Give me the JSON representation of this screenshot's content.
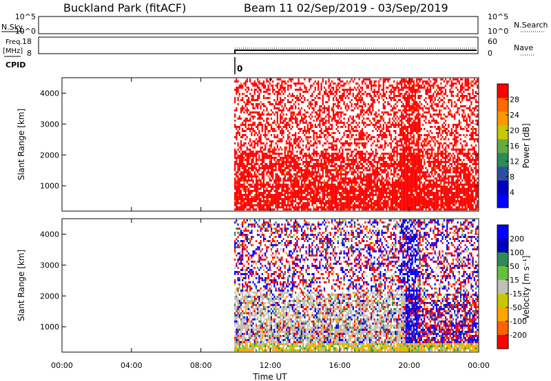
{
  "header": {
    "site": "Buckland Park (fitACF)",
    "beam_info": "Beam 11  02/Sep/2019 - 03/Sep/2019"
  },
  "noise_panel": {
    "left_label": "N.Sky",
    "left_ticks": [
      "10^5",
      "10^0"
    ],
    "right_ticks": [
      "10^5",
      "10^0"
    ],
    "right_label": "N.Search"
  },
  "freq_panel": {
    "left_label_1": "Freq.",
    "left_label_2": "[MHz]",
    "left_ticks": [
      "18",
      "8"
    ],
    "right_ticks": [
      "60",
      "0"
    ],
    "right_label": "Nave",
    "cpid_label": "CPID",
    "cpid_value": "0"
  },
  "chart_data": [
    {
      "type": "heatmap",
      "name": "power",
      "ylabel": "Slant Range [km]",
      "xlabel": "",
      "x_ticks": [
        "00:00",
        "04:00",
        "08:00",
        "12:00",
        "16:00",
        "20:00",
        "00:00"
      ],
      "x_range_hours": [
        0,
        24
      ],
      "y_ticks": [
        1000,
        2000,
        3000,
        4000
      ],
      "ylim": [
        180,
        4500
      ],
      "data_start_hour": 9.92,
      "colorbar": {
        "label": "Power [dB]",
        "ticks": [
          4,
          8,
          12,
          16,
          20,
          24,
          28
        ],
        "range": [
          0,
          32
        ],
        "colors": [
          "#0000ff",
          "#0000c0",
          "#2d4fa0",
          "#2e8b57",
          "#66aa44",
          "#c8c800",
          "#ff9900",
          "#ff6a00",
          "#ff0000"
        ]
      }
    },
    {
      "type": "heatmap",
      "name": "velocity",
      "ylabel": "Slant Range [km]",
      "xlabel": "Time UT",
      "x_ticks": [
        "00:00",
        "04:00",
        "08:00",
        "12:00",
        "16:00",
        "20:00",
        "00:00"
      ],
      "x_range_hours": [
        0,
        24
      ],
      "y_ticks": [
        1000,
        2000,
        3000,
        4000
      ],
      "ylim": [
        180,
        4500
      ],
      "data_start_hour": 9.92,
      "colorbar": {
        "label": "Velocity [m s⁻¹]",
        "ticks": [
          200,
          100,
          50,
          15,
          -15,
          -50,
          -100,
          -200
        ],
        "colors": [
          "#0000ff",
          "#0000bb",
          "#2e8b57",
          "#66c040",
          "#c0c0b8",
          "#c8c800",
          "#ffa500",
          "#ff6000",
          "#ff0000"
        ]
      }
    }
  ]
}
